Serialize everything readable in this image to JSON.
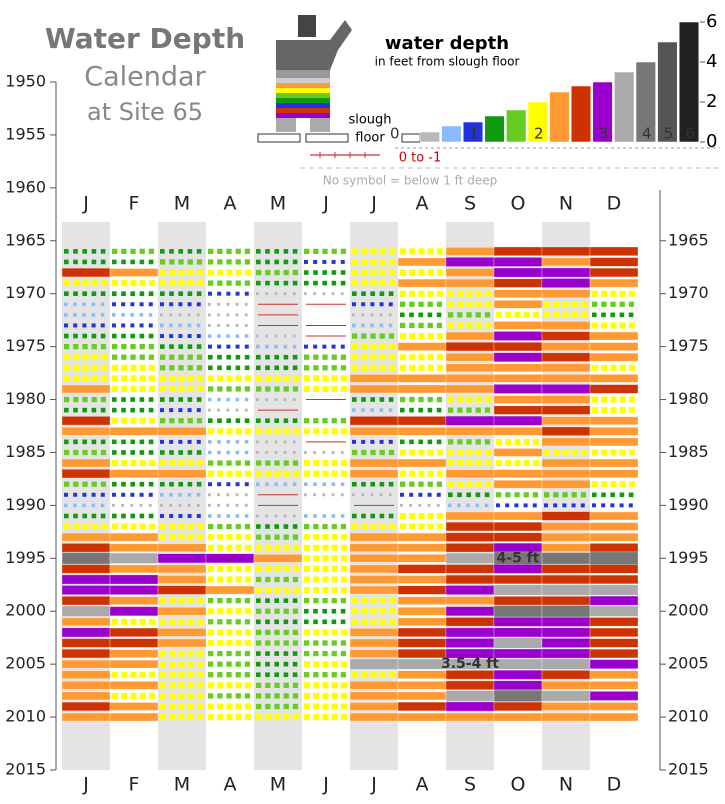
{
  "chart_data": {
    "type": "calendar",
    "title_lines": [
      "Water Depth",
      "Calendar",
      "at Site 65"
    ],
    "legend": {
      "title": "water depth",
      "subtitle": "in feet from slough floor",
      "figure_label": [
        "slough",
        "floor"
      ],
      "dry_label": "0 to -1",
      "note": "No symbol = below 1 ft deep",
      "levels": [
        {
          "value": 0.5,
          "color": "#b8b8b8"
        },
        {
          "value": 0.8,
          "color": "#88bbff"
        },
        {
          "value": 1,
          "color": "#2233dd"
        },
        {
          "value": 1.3,
          "color": "#119911"
        },
        {
          "value": 1.6,
          "color": "#66cc22"
        },
        {
          "value": 2,
          "color": "#ffff00"
        },
        {
          "value": 2.5,
          "color": "#ff9933"
        },
        {
          "value": 2.8,
          "color": "#cc3300"
        },
        {
          "value": 3,
          "color": "#9900cc"
        },
        {
          "value": 3.5,
          "color": "#aaaaaa"
        },
        {
          "value": 4,
          "color": "#777777"
        },
        {
          "value": 5,
          "color": "#555555"
        },
        {
          "value": 6,
          "color": "#222222"
        }
      ],
      "ylim": [
        0,
        6.5
      ],
      "yticks": [
        0,
        2,
        4,
        6
      ],
      "xticks": [
        0,
        1,
        2,
        3,
        4,
        5,
        6
      ]
    },
    "categories": [
      "J",
      "F",
      "M",
      "A",
      "M",
      "J",
      "J",
      "A",
      "S",
      "O",
      "N",
      "D"
    ],
    "years": [
      1966,
      1967,
      1968,
      1969,
      1970,
      1971,
      1972,
      1973,
      1974,
      1975,
      1976,
      1977,
      1978,
      1979,
      1980,
      1981,
      1982,
      1983,
      1984,
      1985,
      1986,
      1987,
      1988,
      1989,
      1990,
      1991,
      1992,
      1993,
      1994,
      1995,
      1996,
      1997,
      1998,
      1999,
      2000,
      2001,
      2002,
      2003,
      2004,
      2005,
      2006,
      2007,
      2008,
      2009,
      2010
    ],
    "ylim": [
      1950,
      2015
    ],
    "yticks": [
      1950,
      1955,
      1960,
      1965,
      1970,
      1975,
      1980,
      1985,
      1990,
      1995,
      2000,
      2005,
      2010,
      2015
    ],
    "y2lim": [
      1950,
      2015
    ],
    "y2ticks": [
      1965,
      1970,
      1975,
      1980,
      1985,
      1990,
      1995,
      2000,
      2005,
      2010,
      2015
    ],
    "values": [
      [
        1.3,
        1.6,
        1.3,
        1.6,
        1.3,
        1.6,
        2,
        2,
        2.5,
        2.8,
        2.8,
        2.8
      ],
      [
        1.3,
        1.3,
        1.6,
        1.6,
        1.3,
        1,
        2,
        2.5,
        3,
        3,
        2.5,
        2.8
      ],
      [
        2.8,
        2.5,
        2,
        2,
        1.6,
        1.3,
        2,
        2,
        2.5,
        3,
        3,
        2.8
      ],
      [
        2,
        2,
        2,
        1.6,
        1.3,
        1.3,
        2,
        2.5,
        2.5,
        2.8,
        3,
        2.5
      ],
      [
        1.3,
        1.3,
        1.3,
        1,
        0.5,
        0.5,
        1.3,
        2,
        2,
        2.5,
        2.5,
        2
      ],
      [
        0.8,
        1,
        1,
        0.5,
        -0.5,
        -0.5,
        1,
        1.6,
        2,
        2.5,
        2,
        1.6
      ],
      [
        0.8,
        0.8,
        0.5,
        0.5,
        -0.5,
        null,
        0.5,
        1.3,
        1.6,
        2,
        2,
        1.3
      ],
      [
        1,
        1,
        0.8,
        0.5,
        -0.5,
        -0.5,
        0.8,
        1.6,
        2,
        2.5,
        2.5,
        2
      ],
      [
        1.3,
        1.3,
        1,
        0.8,
        0.5,
        -0.5,
        1.6,
        2,
        2.5,
        3,
        2.8,
        2.5
      ],
      [
        1.6,
        1.6,
        1.3,
        1,
        0.8,
        1,
        2,
        2.5,
        2.8,
        2.8,
        2.5,
        2.5
      ],
      [
        2,
        1.6,
        1.6,
        1.3,
        1.3,
        1.6,
        2,
        2,
        2.5,
        3,
        2.8,
        2.5
      ],
      [
        2,
        2,
        1.6,
        1.3,
        1.3,
        1.6,
        2,
        2,
        2.5,
        2.5,
        2.5,
        2
      ],
      [
        2,
        2,
        2,
        2,
        2,
        2,
        2.5,
        2.5,
        2.5,
        2.5,
        2.5,
        2.5
      ],
      [
        2.5,
        2,
        2,
        1.6,
        1.6,
        2,
        2.5,
        2.5,
        2.5,
        3,
        3,
        2.8
      ],
      [
        1.6,
        1.3,
        1.3,
        0.8,
        0.5,
        -0.5,
        1.3,
        1.6,
        2,
        2.5,
        2.5,
        2
      ],
      [
        1.3,
        1.3,
        1,
        0.5,
        -0.5,
        null,
        0.8,
        1.3,
        1.6,
        2.8,
        2.8,
        2
      ],
      [
        2.8,
        2,
        1.6,
        1.3,
        1.3,
        1.6,
        2.8,
        2.8,
        3,
        3,
        2.5,
        2.5
      ],
      [
        2.5,
        2.5,
        2.5,
        2,
        2,
        2,
        2.5,
        2.5,
        2.5,
        2.5,
        2.8,
        2.5
      ],
      [
        1.3,
        1.3,
        1,
        0.8,
        0.5,
        -0.5,
        1,
        1.3,
        1.6,
        2,
        2.5,
        2.5
      ],
      [
        1.6,
        1.3,
        1.3,
        0.8,
        0.5,
        0.5,
        1.6,
        2,
        2,
        2.5,
        2,
        2
      ],
      [
        2.5,
        2,
        2,
        1.6,
        1.6,
        2,
        2.5,
        2.5,
        2,
        2,
        2.5,
        2.5
      ],
      [
        2.8,
        2.5,
        2.5,
        2,
        2,
        2,
        2.5,
        2,
        2.5,
        2.5,
        2.5,
        2.5
      ],
      [
        1.6,
        1.3,
        1.3,
        1,
        0.8,
        0.8,
        1.3,
        1.6,
        2,
        2.5,
        2.5,
        2
      ],
      [
        1,
        1,
        0.8,
        0.5,
        -0.5,
        0.5,
        0.5,
        1,
        1.3,
        1.6,
        1.6,
        1.3
      ],
      [
        0.8,
        0.5,
        0.5,
        0.5,
        -0.5,
        null,
        -0.5,
        0.5,
        0.8,
        1,
        1,
        1
      ],
      [
        1.3,
        1.3,
        1,
        0.8,
        0.5,
        0.8,
        1.3,
        2,
        2.5,
        2.5,
        2.8,
        2.5
      ],
      [
        2,
        2,
        2,
        1.6,
        1.3,
        1.6,
        2,
        2,
        2.8,
        2.8,
        2.5,
        2.5
      ],
      [
        2.5,
        2.5,
        2,
        2,
        1.6,
        2,
        2.5,
        2.5,
        2.8,
        2.8,
        2.5,
        2.5
      ],
      [
        2.8,
        2.5,
        2.5,
        2,
        2,
        2,
        2.5,
        2.5,
        2.8,
        3,
        2.5,
        2.8
      ],
      [
        4,
        3.5,
        3,
        3,
        2.5,
        2,
        2.5,
        2.5,
        3.5,
        4.5,
        4,
        4.5
      ],
      [
        2.8,
        2.5,
        2.5,
        2,
        2,
        2,
        2.5,
        2.8,
        2.8,
        3,
        2.8,
        2.8
      ],
      [
        3,
        3,
        2.5,
        2,
        1.6,
        2,
        2.5,
        2.5,
        2.8,
        2.8,
        2.8,
        2.8
      ],
      [
        3,
        3,
        2.8,
        2.5,
        2,
        2,
        2.5,
        2.8,
        3,
        3.5,
        3.5,
        3.5
      ],
      [
        2.8,
        2.5,
        2,
        1.6,
        1.3,
        1.6,
        2,
        2.5,
        2.5,
        2.8,
        2.8,
        3
      ],
      [
        3.5,
        3,
        2.5,
        2,
        1.6,
        1.3,
        2,
        2.5,
        3,
        4,
        4,
        3.5
      ],
      [
        2.5,
        2,
        2,
        1.6,
        1.3,
        1.3,
        2,
        2.5,
        2.8,
        3,
        3,
        2.8
      ],
      [
        3,
        2.8,
        2.5,
        2,
        1.6,
        2,
        2.5,
        2.8,
        3,
        3,
        3,
        2.8
      ],
      [
        2.8,
        2.8,
        2.5,
        2,
        1.6,
        1.6,
        2.5,
        2.8,
        3,
        3.5,
        3,
        2.8
      ],
      [
        2.8,
        2.5,
        2,
        1.6,
        1.3,
        1.6,
        2.5,
        2.8,
        3,
        3,
        3,
        2.8
      ],
      [
        2.5,
        2.5,
        2,
        1.6,
        1.3,
        2,
        3.5,
        3.5,
        3.5,
        3.5,
        3.5,
        3
      ],
      [
        2.5,
        2,
        2,
        1.6,
        1.3,
        1.6,
        2,
        2.5,
        2.8,
        3,
        2.8,
        2.5
      ],
      [
        2.5,
        2.5,
        2,
        2,
        1.6,
        2,
        2.5,
        2.5,
        2.8,
        3,
        2.5,
        2.5
      ],
      [
        2.5,
        2,
        2,
        1.6,
        1.6,
        2,
        2.5,
        2.5,
        3.5,
        4,
        3.5,
        3
      ],
      [
        2.8,
        2.5,
        2,
        2,
        1.6,
        2,
        2.5,
        2.8,
        3,
        2.8,
        2.5,
        2.5
      ],
      [
        2.5,
        2.5,
        2,
        2,
        2,
        2,
        2.5,
        2.5,
        2.5,
        2.5,
        2.5,
        2.5
      ]
    ],
    "annotations": [
      {
        "text": "4-5 ft",
        "year": 1995,
        "month": 9
      },
      {
        "text": "3.5-4 ft",
        "year": 2005,
        "month": 8
      }
    ]
  }
}
